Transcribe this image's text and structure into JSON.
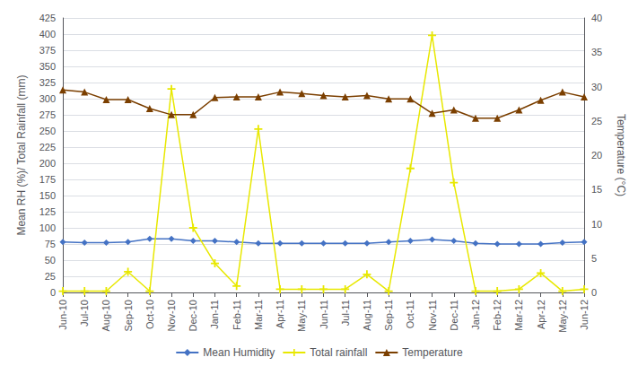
{
  "chart_data": {
    "type": "line",
    "categories": [
      "Jun-10",
      "Jul-10",
      "Aug-10",
      "Sep-10",
      "Oct-10",
      "Nov-10",
      "Dec-10",
      "Jan-11",
      "Feb-11",
      "Mar-11",
      "Apr-11",
      "May-11",
      "Jun-11",
      "Jul-11",
      "Aug-11",
      "Sep-11",
      "Oct-11",
      "Nov-11",
      "Dec-11",
      "Jan-12",
      "Feb-12",
      "Mar-12",
      "Apr-12",
      "May-12",
      "Jun-12"
    ],
    "series": [
      {
        "name": "Mean Humidity",
        "color": "#4472c4",
        "marker": "diamond",
        "values": [
          78,
          77,
          77,
          78,
          83,
          83,
          80,
          80,
          78,
          76,
          76,
          76,
          76,
          76,
          76,
          78,
          80,
          82,
          80,
          76,
          75,
          75,
          75,
          77,
          78
        ]
      },
      {
        "name": "Total rainfall",
        "color": "#e8e800",
        "marker": "plus",
        "values": [
          2,
          2,
          2,
          32,
          2,
          315,
          100,
          45,
          10,
          253,
          5,
          5,
          5,
          5,
          28,
          2,
          192,
          398,
          170,
          2,
          2,
          5,
          30,
          2,
          5
        ]
      },
      {
        "name": "Temperature",
        "color": "#7b3f00",
        "marker": "triangle",
        "axis": "y2",
        "values": [
          29.5,
          29.2,
          28.1,
          28.1,
          26.8,
          25.9,
          25.9,
          28.4,
          28.5,
          28.5,
          29.2,
          29.0,
          28.7,
          28.5,
          28.7,
          28.2,
          28.2,
          26.1,
          26.6,
          25.4,
          25.4,
          26.6,
          28.0,
          29.2,
          28.5
        ]
      }
    ],
    "ylabel": "Mean RH (%)/ Total Rainfall (mm)",
    "y2label": "Temperature (°C)",
    "ylim": [
      0,
      425
    ],
    "yticks": [
      0,
      25,
      50,
      75,
      100,
      125,
      150,
      175,
      200,
      225,
      250,
      275,
      300,
      325,
      350,
      375,
      400,
      425
    ],
    "y2lim": [
      0,
      40
    ],
    "y2ticks": [
      0,
      5,
      10,
      15,
      20,
      25,
      30,
      35,
      40
    ],
    "grid": true,
    "legend": "bottom"
  }
}
